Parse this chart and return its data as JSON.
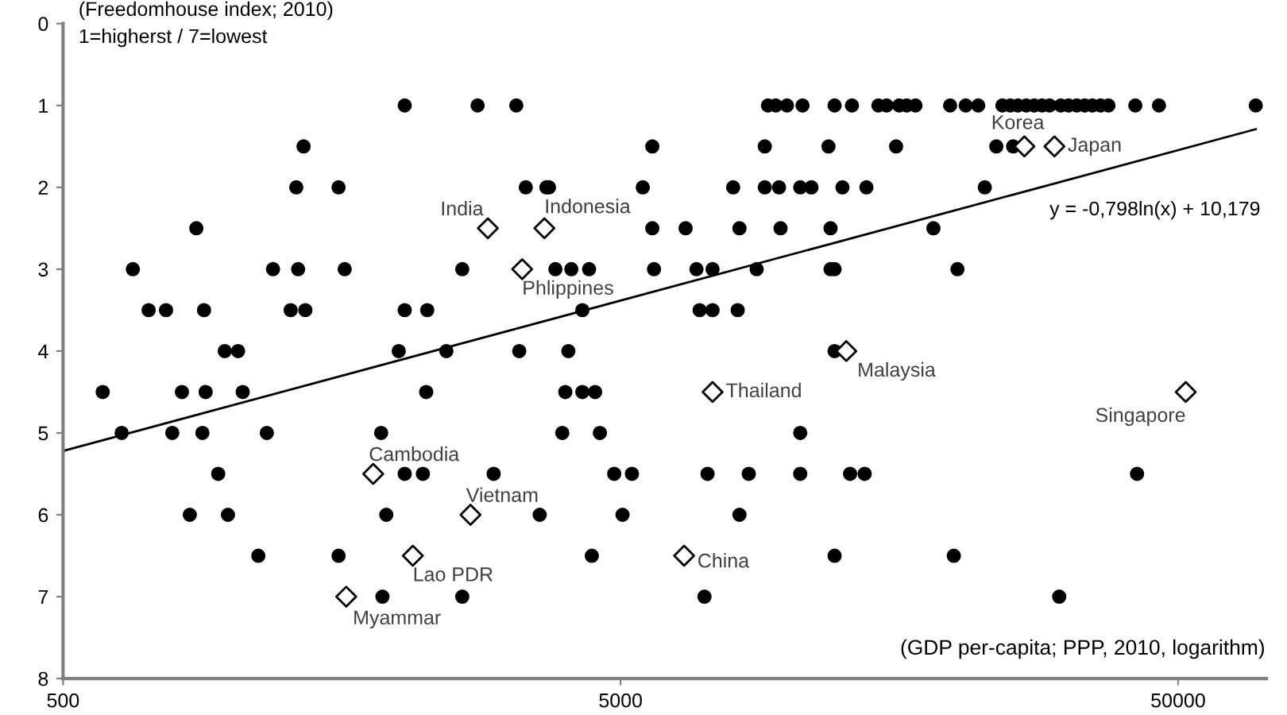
{
  "chart_data": {
    "type": "scatter",
    "ylabel": "(Freedomhouse index; 2010)\n1=higherst / 7=lowest",
    "xlabel": "(GDP per-capita; PPP, 2010, logarithm)",
    "log": "x",
    "xlim": [
      500,
      72000
    ],
    "xticks": [
      500,
      5000,
      50000
    ],
    "ylim": [
      8,
      0
    ],
    "yticks": [
      0,
      1,
      2,
      3,
      4,
      5,
      6,
      7,
      8
    ],
    "grid": false,
    "legend": false,
    "series": [
      {
        "marker": "circle",
        "color": "#000000",
        "x": [
          2050,
          2770,
          3250,
          9190,
          9490,
          9940,
          10600,
          12100,
          13000,
          14500,
          15000,
          15800,
          16300,
          16900,
          19500,
          20800,
          21900,
          24200,
          25000,
          25800,
          26700,
          27600,
          28500,
          29400,
          30800,
          31800,
          32900,
          34000,
          35100,
          36300,
          37500,
          41900,
          46200,
          68900,
          1350,
          5700,
          9070,
          11800,
          15600,
          23600,
          25300,
          1310,
          1560,
          3380,
          3680,
          3720,
          5480,
          7960,
          9070,
          9620,
          10500,
          11000,
          12500,
          13800,
          22500,
          867,
          5700,
          6540,
          8170,
          9680,
          11900,
          18200,
          667,
          1190,
          1320,
          1600,
          2600,
          3820,
          4080,
          4390,
          5740,
          6840,
          7310,
          8770,
          11900,
          12100,
          20100,
          712,
          765,
          895,
          1280,
          1360,
          2050,
          2250,
          4270,
          6930,
          7310,
          8110,
          975,
          1030,
          2000,
          2435,
          3290,
          4030,
          12100,
          589,
          817,
          901,
          1050,
          2240,
          3980,
          4270,
          4500,
          637,
          785,
          889,
          1160,
          1860,
          3930,
          4590,
          10500,
          949,
          2050,
          2210,
          2960,
          4870,
          5240,
          7160,
          8490,
          10500,
          12900,
          13700,
          42200,
          844,
          988,
          1900,
          3580,
          5040,
          8170,
          1120,
          1560,
          4440,
          12100,
          19800,
          1870,
          2600,
          7070,
          30600
        ],
        "values": [
          1,
          1,
          1,
          1,
          1,
          1,
          1,
          1,
          1,
          1,
          1,
          1,
          1,
          1,
          1,
          1,
          1,
          1,
          1,
          1,
          1,
          1,
          1,
          1,
          1,
          1,
          1,
          1,
          1,
          1,
          1,
          1,
          1,
          1,
          1.5,
          1.5,
          1.5,
          1.5,
          1.5,
          1.5,
          1.5,
          2,
          2,
          2,
          2,
          2,
          2,
          2,
          2,
          2,
          2,
          2,
          2,
          2,
          2,
          2.5,
          2.5,
          2.5,
          2.5,
          2.5,
          2.5,
          2.5,
          3,
          3,
          3,
          3,
          3,
          3,
          3,
          3,
          3,
          3,
          3,
          3,
          3,
          3,
          3,
          3.5,
          3.5,
          3.5,
          3.5,
          3.5,
          3.5,
          3.5,
          3.5,
          3.5,
          3.5,
          3.5,
          4,
          4,
          4,
          4,
          4,
          4,
          4,
          4.5,
          4.5,
          4.5,
          4.5,
          4.5,
          4.5,
          4.5,
          4.5,
          5,
          5,
          5,
          5,
          5,
          5,
          5,
          5,
          5.5,
          5.5,
          5.5,
          5.5,
          5.5,
          5.5,
          5.5,
          5.5,
          5.5,
          5.5,
          5.5,
          5.5,
          6,
          6,
          6,
          6,
          6,
          6,
          6.5,
          6.5,
          6.5,
          6.5,
          6.5,
          7,
          7,
          7,
          7
        ]
      },
      {
        "marker": "diamond",
        "color": "#ffffff",
        "x": [
          2890,
          3650,
          3330,
          26500,
          30000,
          12700,
          7310,
          51600,
          1800,
          2690,
          2120,
          6500,
          1610
        ],
        "values": [
          2.5,
          2.5,
          3,
          1.5,
          1.5,
          4,
          4.5,
          4.5,
          5.5,
          6,
          6.5,
          6.5,
          7
        ]
      },
      {
        "type": "line",
        "marker": "none",
        "line_style": "solid",
        "color": "#000000",
        "x": [
          500,
          68900
        ],
        "values": [
          5.22,
          1.29
        ]
      }
    ],
    "annotations": [
      {
        "text": "India",
        "x": 2890,
        "y": 2.5
      },
      {
        "text": "Indonesia",
        "x": 3650,
        "y": 2.5
      },
      {
        "text": "Phlippines",
        "x": 3330,
        "y": 3
      },
      {
        "text": "Korea",
        "x": 26500,
        "y": 1.5
      },
      {
        "text": "Japan",
        "x": 30000,
        "y": 1.5
      },
      {
        "text": "Malaysia",
        "x": 12700,
        "y": 4
      },
      {
        "text": "Thailand",
        "x": 7310,
        "y": 4.5
      },
      {
        "text": "Singapore",
        "x": 51600,
        "y": 4.5
      },
      {
        "text": "Cambodia",
        "x": 1800,
        "y": 5.5
      },
      {
        "text": "Vietnam",
        "x": 2690,
        "y": 6
      },
      {
        "text": "Lao PDR",
        "x": 2120,
        "y": 6.5
      },
      {
        "text": "China",
        "x": 6500,
        "y": 6.5
      },
      {
        "text": "Myammar",
        "x": 1610,
        "y": 7
      },
      "y = -0,798ln(x) + 10,179"
    ]
  }
}
